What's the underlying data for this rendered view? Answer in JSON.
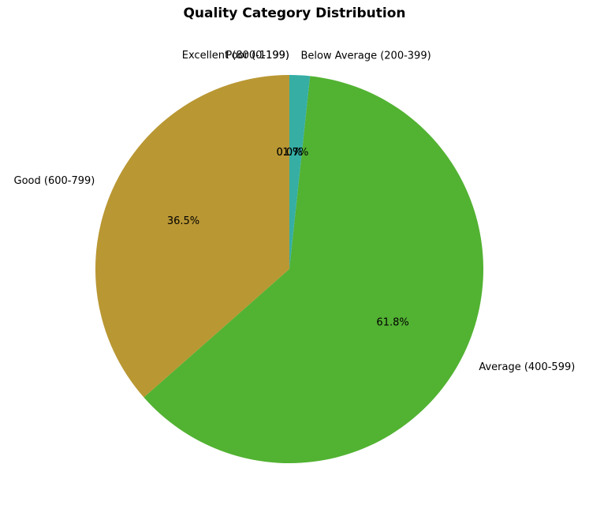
{
  "chart_data": {
    "type": "pie",
    "title": "Quality Category Distribution",
    "start_angle_deg": 90,
    "direction": "counterclockwise",
    "slices": [
      {
        "label": "Excellent (800-1199)",
        "percent": 0.0,
        "pct_label": "0.0%",
        "color": "#3b5bc9"
      },
      {
        "label": "Good (600-799)",
        "percent": 36.5,
        "pct_label": "36.5%",
        "color": "#b99733"
      },
      {
        "label": "Average (400-599)",
        "percent": 61.8,
        "pct_label": "61.8%",
        "color": "#52b232"
      },
      {
        "label": "Below Average (200-399)",
        "percent": 1.7,
        "pct_label": "1.7%",
        "color": "#36aea4"
      },
      {
        "label": "Poor (0-199)",
        "percent": 0.0,
        "pct_label": "0.0%",
        "color": "#9b3bc9"
      }
    ]
  }
}
